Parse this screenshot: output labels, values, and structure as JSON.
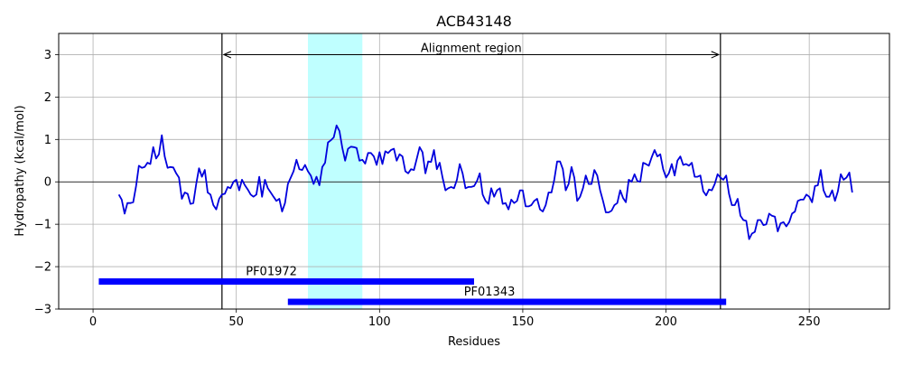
{
  "chart_data": {
    "type": "line",
    "title": "ACB43148",
    "xlabel": "Residues",
    "ylabel": "Hydropathy (kcal/mol)",
    "xlim": [
      -12,
      278
    ],
    "ylim": [
      -3,
      3.5
    ],
    "xticks": [
      0,
      50,
      100,
      150,
      200,
      250
    ],
    "yticks": [
      -3,
      -2,
      -1,
      0,
      1,
      2,
      3
    ],
    "grid": true,
    "colors": {
      "line": "#0000dd",
      "domain_bar": "#0000ff",
      "highlight": "#bfffff",
      "boundary": "#000000",
      "grid": "#b0b0b0"
    },
    "series": [
      {
        "x": [
          9,
          10,
          11,
          12,
          13,
          14,
          15,
          16,
          17,
          18,
          19,
          20,
          21,
          22,
          23,
          24,
          25,
          26,
          27,
          28,
          29,
          30,
          31,
          32,
          33,
          34,
          35,
          36,
          37,
          38,
          39,
          40,
          41,
          42,
          43,
          44,
          45,
          46,
          47,
          48,
          49,
          50,
          51,
          52,
          53,
          54,
          55,
          56,
          57,
          58,
          59,
          60,
          61,
          62,
          63,
          64,
          65,
          66,
          67,
          68,
          69,
          70,
          71,
          72,
          73,
          74,
          75,
          76,
          77,
          78,
          79,
          80,
          81,
          82,
          83,
          84,
          85,
          86,
          87,
          88,
          89,
          90,
          91,
          92,
          93,
          94,
          95,
          96,
          97,
          98,
          99,
          100,
          101,
          102,
          103,
          104,
          105,
          106,
          107,
          108,
          109,
          110,
          111,
          112,
          113,
          114,
          115,
          116,
          117,
          118,
          119,
          120,
          121,
          122,
          123,
          124,
          125,
          126,
          127,
          128,
          129,
          130,
          131,
          132,
          133,
          134,
          135,
          136,
          137,
          138,
          139,
          140,
          141,
          142,
          143,
          144,
          145,
          146,
          147,
          148,
          149,
          150,
          151,
          152,
          153,
          154,
          155,
          156,
          157,
          158,
          159,
          160,
          161,
          162,
          163,
          164,
          165,
          166,
          167,
          168,
          169,
          170,
          171,
          172,
          173,
          174,
          175,
          176,
          177,
          178,
          179,
          180,
          181,
          182,
          183,
          184,
          185,
          186,
          187,
          188,
          189,
          190,
          191,
          192,
          193,
          194,
          195,
          196,
          197,
          198,
          199,
          200,
          201,
          202,
          203,
          204,
          205,
          206,
          207,
          208,
          209,
          210,
          211,
          212,
          213,
          214,
          215,
          216,
          217,
          218,
          219,
          220,
          221,
          222,
          223,
          224,
          225,
          226,
          227,
          228,
          229,
          230,
          231,
          232,
          233,
          234,
          235,
          236,
          237,
          238,
          239,
          240,
          241,
          242,
          243,
          244,
          245,
          246,
          247,
          248,
          249,
          250,
          251,
          252,
          253,
          254,
          255,
          256,
          257,
          258,
          259,
          260,
          261,
          262,
          263,
          264,
          265
        ],
        "y": [
          -0.3,
          -0.42,
          -0.75,
          -0.5,
          -0.5,
          -0.48,
          -0.1,
          0.38,
          0.33,
          0.35,
          0.45,
          0.42,
          0.82,
          0.55,
          0.65,
          1.1,
          0.6,
          0.33,
          0.35,
          0.34,
          0.2,
          0.1,
          -0.4,
          -0.25,
          -0.28,
          -0.52,
          -0.5,
          -0.05,
          0.32,
          0.12,
          0.28,
          -0.25,
          -0.3,
          -0.55,
          -0.65,
          -0.4,
          -0.3,
          -0.28,
          -0.12,
          -0.15,
          0.0,
          0.05,
          -0.2,
          0.05,
          -0.08,
          -0.18,
          -0.3,
          -0.35,
          -0.3,
          0.12,
          -0.35,
          0.05,
          -0.15,
          -0.25,
          -0.35,
          -0.45,
          -0.4,
          -0.7,
          -0.5,
          -0.05,
          0.1,
          0.25,
          0.52,
          0.3,
          0.28,
          0.4,
          0.25,
          0.15,
          -0.05,
          0.12,
          -0.08,
          0.35,
          0.45,
          0.93,
          0.98,
          1.05,
          1.33,
          1.2,
          0.8,
          0.5,
          0.78,
          0.83,
          0.82,
          0.8,
          0.5,
          0.52,
          0.43,
          0.68,
          0.68,
          0.6,
          0.4,
          0.7,
          0.42,
          0.72,
          0.68,
          0.75,
          0.78,
          0.5,
          0.65,
          0.6,
          0.25,
          0.2,
          0.3,
          0.28,
          0.55,
          0.82,
          0.7,
          0.2,
          0.48,
          0.47,
          0.75,
          0.3,
          0.45,
          0.1,
          -0.2,
          -0.15,
          -0.12,
          -0.15,
          0.05,
          0.42,
          0.2,
          -0.15,
          -0.12,
          -0.12,
          -0.1,
          0.02,
          0.2,
          -0.3,
          -0.45,
          -0.52,
          -0.15,
          -0.35,
          -0.2,
          -0.15,
          -0.52,
          -0.5,
          -0.65,
          -0.42,
          -0.5,
          -0.45,
          -0.2,
          -0.2,
          -0.58,
          -0.58,
          -0.55,
          -0.45,
          -0.4,
          -0.65,
          -0.7,
          -0.55,
          -0.25,
          -0.25,
          0.05,
          0.48,
          0.48,
          0.3,
          -0.2,
          -0.05,
          0.35,
          0.1,
          -0.45,
          -0.35,
          -0.15,
          0.15,
          -0.05,
          -0.05,
          0.28,
          0.15,
          -0.2,
          -0.45,
          -0.72,
          -0.72,
          -0.68,
          -0.55,
          -0.5,
          -0.2,
          -0.38,
          -0.48,
          0.05,
          0.0,
          0.18,
          0.02,
          0.0,
          0.45,
          0.42,
          0.38,
          0.58,
          0.75,
          0.6,
          0.65,
          0.3,
          0.1,
          0.2,
          0.42,
          0.15,
          0.5,
          0.6,
          0.4,
          0.42,
          0.38,
          0.45,
          0.12,
          0.12,
          0.15,
          -0.22,
          -0.32,
          -0.18,
          -0.2,
          -0.05,
          0.18,
          0.1,
          0.05,
          0.15,
          -0.28,
          -0.55,
          -0.55,
          -0.4,
          -0.8,
          -0.9,
          -0.92,
          -1.35,
          -1.22,
          -1.18,
          -0.9,
          -0.9,
          -1.02,
          -1.0,
          -0.75,
          -0.8,
          -0.82,
          -1.17,
          -0.98,
          -0.95,
          -1.05,
          -0.95,
          -0.75,
          -0.7,
          -0.45,
          -0.42,
          -0.42,
          -0.3,
          -0.35,
          -0.48,
          -0.1,
          -0.08,
          0.28,
          -0.2,
          -0.35,
          -0.35,
          -0.2,
          -0.45,
          -0.22,
          0.18,
          0.05,
          0.1,
          0.22,
          -0.25
        ]
      }
    ],
    "highlight_region": [
      75,
      94
    ],
    "alignment_region": {
      "label": "Alignment region",
      "start": 45,
      "end": 219,
      "arrow_y": 3.0
    },
    "domains": [
      {
        "label": "PF01972",
        "start": 2,
        "end": 133,
        "y": -2.35
      },
      {
        "label": "PF01343",
        "start": 68,
        "end": 221,
        "y": -2.83
      }
    ]
  }
}
